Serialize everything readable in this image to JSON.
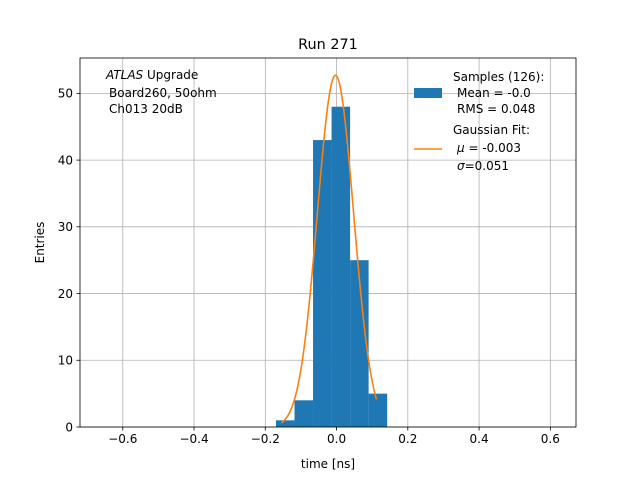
{
  "chart_data": {
    "type": "bar",
    "title": "Run 271",
    "xlabel": "time [ns]",
    "ylabel": "Entries",
    "xlim": [
      -0.72,
      0.672
    ],
    "ylim": [
      0,
      55.3
    ],
    "xticks": [
      -0.6,
      -0.4,
      -0.2,
      0.0,
      0.2,
      0.4,
      0.6
    ],
    "xtick_labels": [
      "−0.6",
      "−0.4",
      "−0.2",
      "0.0",
      "0.2",
      "0.4",
      "0.6"
    ],
    "yticks": [
      0,
      10,
      20,
      30,
      40,
      50
    ],
    "ytick_labels": [
      "0",
      "10",
      "20",
      "30",
      "40",
      "50"
    ],
    "grid": true,
    "annotation": {
      "italic": "ATLAS",
      "rest": " Upgrade",
      "line2": "Board260, 50ohm",
      "line3": "Ch013 20dB"
    },
    "histogram": {
      "color": "#1f77b4",
      "bins": [
        {
          "x0": -0.17,
          "x1": -0.118,
          "count": 1
        },
        {
          "x0": -0.118,
          "x1": -0.066,
          "count": 4
        },
        {
          "x0": -0.066,
          "x1": -0.014,
          "count": 43
        },
        {
          "x0": -0.014,
          "x1": 0.038,
          "count": 48
        },
        {
          "x0": 0.038,
          "x1": 0.09,
          "count": 25
        },
        {
          "x0": 0.09,
          "x1": 0.142,
          "count": 5
        }
      ]
    },
    "fit": {
      "color": "#ff7f0e",
      "mu": -0.003,
      "sigma": 0.051,
      "amplitude": 52.7,
      "x_range": [
        -0.155,
        0.112
      ]
    },
    "legend": {
      "position": "top-right",
      "samples": {
        "line1": "Samples (126):",
        "line2": "Mean = -0.0",
        "line3": "RMS = 0.048"
      },
      "gaussian": {
        "line1": "Gaussian Fit:",
        "line2_sym": "μ",
        "line2_val": " = -0.003",
        "line3_sym": "σ",
        "line3_val": "=0.051"
      }
    }
  }
}
